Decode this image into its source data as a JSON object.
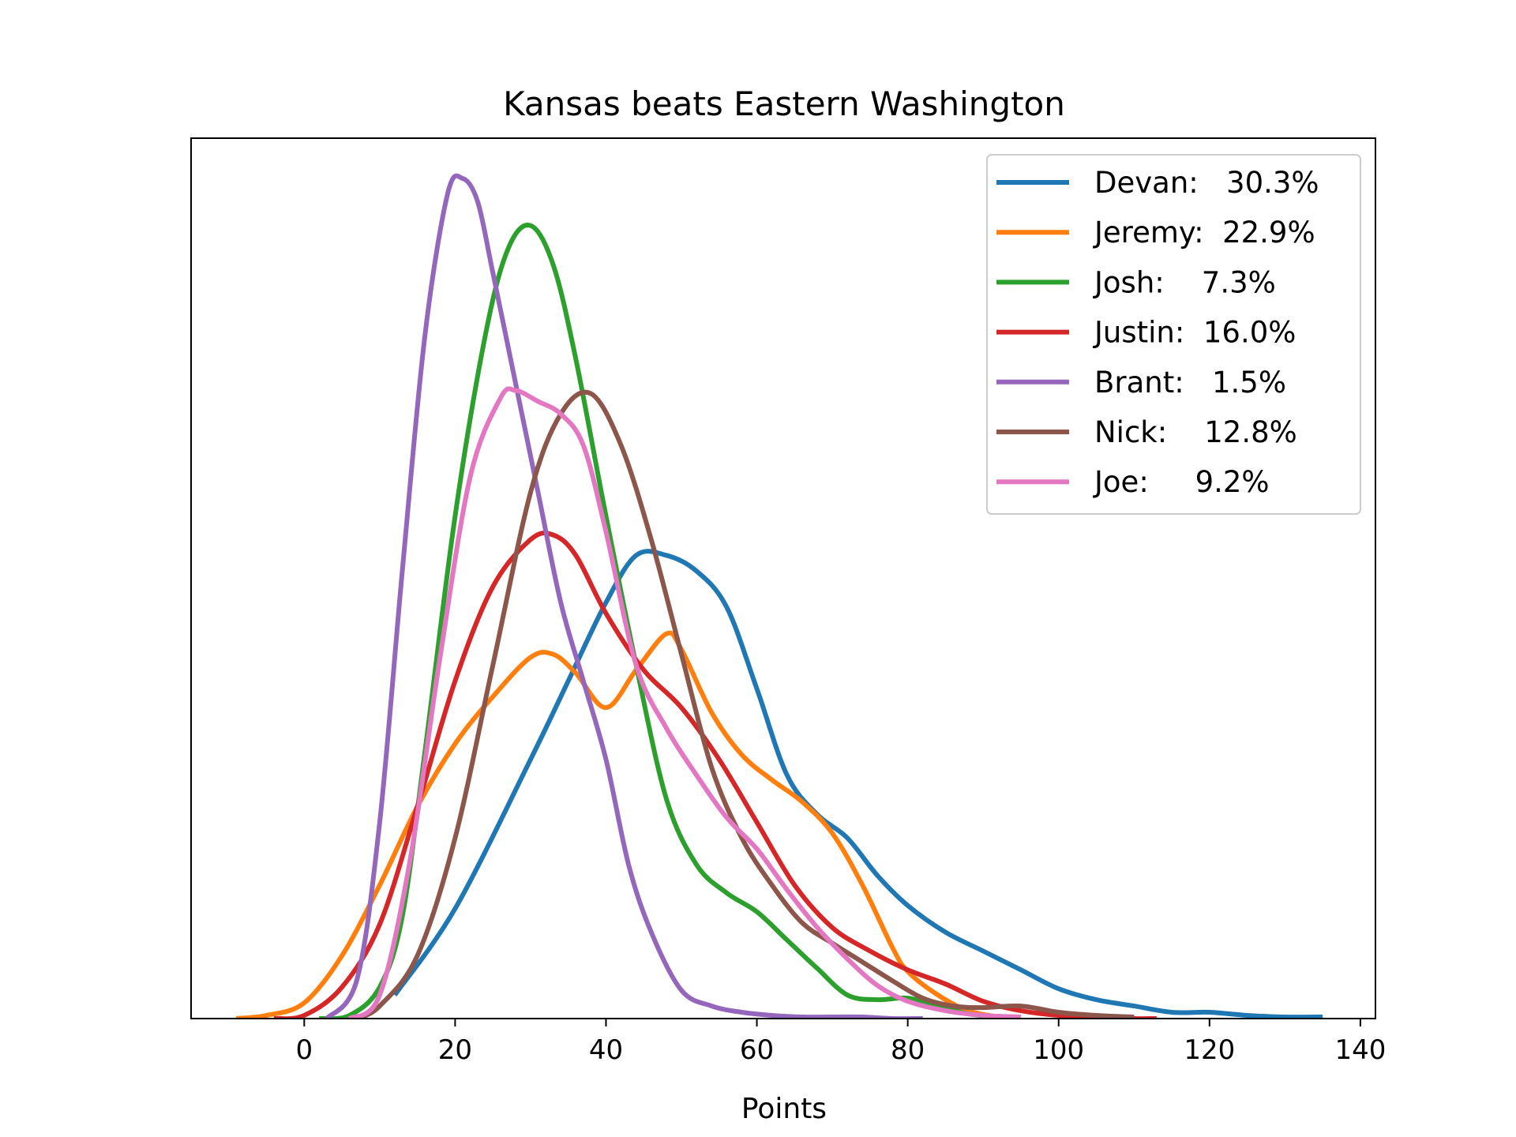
{
  "chart_data": {
    "type": "line",
    "title": "Kansas beats Eastern Washington",
    "xlabel": "Points",
    "ylabel": "",
    "xlim": [
      -15,
      142
    ],
    "ylim": [
      0,
      0.0535
    ],
    "xticks": [
      0,
      20,
      40,
      60,
      80,
      100,
      120,
      140
    ],
    "legend_position": "top-right",
    "grid": false,
    "series": [
      {
        "name": "Devan:   30.3%",
        "color": "#1f77b4",
        "x": [
          12,
          20,
          30,
          35,
          40,
          44,
          48,
          52,
          56,
          60,
          64,
          68,
          72,
          76,
          80,
          85,
          90,
          95,
          100,
          105,
          110,
          115,
          120,
          125,
          130,
          135
        ],
        "y": [
          0.0015,
          0.007,
          0.0165,
          0.0215,
          0.0265,
          0.0295,
          0.0295,
          0.0285,
          0.0262,
          0.021,
          0.0155,
          0.013,
          0.0115,
          0.0091,
          0.0072,
          0.0055,
          0.0043,
          0.0031,
          0.0019,
          0.0012,
          0.0008,
          0.0004,
          0.0004,
          0.0002,
          0.0001,
          0.0001
        ]
      },
      {
        "name": "Jeremy:  22.9%",
        "color": "#ff7f0e",
        "x": [
          -9,
          -5,
          0,
          5,
          10,
          15,
          20,
          25,
          30,
          33,
          36,
          40,
          44,
          48,
          50,
          54,
          58,
          62,
          66,
          70,
          74,
          78,
          80,
          84,
          88,
          92
        ],
        "y": [
          0,
          0.0002,
          0.001,
          0.004,
          0.0085,
          0.0135,
          0.0175,
          0.0205,
          0.023,
          0.0232,
          0.022,
          0.0198,
          0.0222,
          0.0245,
          0.0235,
          0.0195,
          0.0168,
          0.0152,
          0.0138,
          0.0118,
          0.0085,
          0.0045,
          0.003,
          0.0015,
          0.0005,
          0.0001
        ]
      },
      {
        "name": "Josh:    7.3%",
        "color": "#2ca02c",
        "x": [
          2,
          6,
          10,
          13,
          16,
          20,
          24,
          27,
          30,
          33,
          36,
          40,
          44,
          48,
          52,
          56,
          60,
          64,
          68,
          72,
          76,
          80,
          84,
          88,
          92
        ],
        "y": [
          0,
          0.0002,
          0.002,
          0.0065,
          0.017,
          0.032,
          0.0435,
          0.049,
          0.0505,
          0.048,
          0.042,
          0.032,
          0.0225,
          0.014,
          0.0098,
          0.008,
          0.0068,
          0.005,
          0.0032,
          0.0015,
          0.0012,
          0.0013,
          0.0008,
          0.0003,
          0.0001
        ]
      },
      {
        "name": "Justin:  16.0%",
        "color": "#d62728",
        "x": [
          -4,
          0,
          5,
          10,
          15,
          20,
          25,
          30,
          33,
          36,
          40,
          45,
          50,
          55,
          60,
          65,
          70,
          75,
          80,
          85,
          90,
          95,
          100,
          105,
          110,
          113
        ],
        "y": [
          0,
          0.0002,
          0.002,
          0.006,
          0.0135,
          0.0215,
          0.0275,
          0.0305,
          0.0308,
          0.0295,
          0.0258,
          0.0222,
          0.0198,
          0.0165,
          0.0125,
          0.0085,
          0.0058,
          0.0043,
          0.0031,
          0.0022,
          0.0011,
          0.0005,
          0.0002,
          0.0001,
          0,
          0
        ]
      },
      {
        "name": "Brant:   1.5%",
        "color": "#9467bd",
        "x": [
          3,
          7,
          10,
          13,
          16,
          19,
          21,
          23,
          25,
          28,
          31,
          34,
          37,
          40,
          43,
          46,
          50,
          54,
          58,
          62,
          66,
          70,
          74,
          78,
          82
        ],
        "y": [
          0,
          0.0025,
          0.0125,
          0.0285,
          0.0435,
          0.0525,
          0.0535,
          0.052,
          0.0475,
          0.0405,
          0.0335,
          0.0265,
          0.0215,
          0.0165,
          0.0098,
          0.0055,
          0.0018,
          0.0008,
          0.0004,
          0.0002,
          0.0001,
          0.0001,
          0.0001,
          0,
          0
        ]
      },
      {
        "name": "Nick:    12.8%",
        "color": "#8c564b",
        "x": [
          7,
          10,
          15,
          20,
          25,
          30,
          34,
          38,
          42,
          46,
          50,
          54,
          58,
          62,
          66,
          70,
          74,
          78,
          82,
          86,
          90,
          95,
          100,
          105,
          110
        ],
        "y": [
          0,
          0.0008,
          0.004,
          0.0115,
          0.0225,
          0.0335,
          0.0385,
          0.0398,
          0.0365,
          0.0305,
          0.0232,
          0.016,
          0.0115,
          0.0085,
          0.0061,
          0.0048,
          0.0036,
          0.0024,
          0.0013,
          0.0008,
          0.0007,
          0.0008,
          0.0004,
          0.0002,
          0.0001
        ]
      },
      {
        "name": "Joe:     9.2%",
        "color": "#e377c2",
        "x": [
          6,
          10,
          14,
          18,
          22,
          26,
          28,
          31,
          34,
          37,
          40,
          44,
          48,
          52,
          56,
          60,
          64,
          68,
          72,
          76,
          80,
          85,
          90,
          95
        ],
        "y": [
          0,
          0.0015,
          0.01,
          0.023,
          0.0345,
          0.0395,
          0.04,
          0.0393,
          0.0385,
          0.0365,
          0.031,
          0.0225,
          0.0185,
          0.0155,
          0.0128,
          0.0108,
          0.0082,
          0.0058,
          0.0038,
          0.0021,
          0.0011,
          0.0005,
          0.0002,
          0.0001
        ]
      }
    ]
  }
}
